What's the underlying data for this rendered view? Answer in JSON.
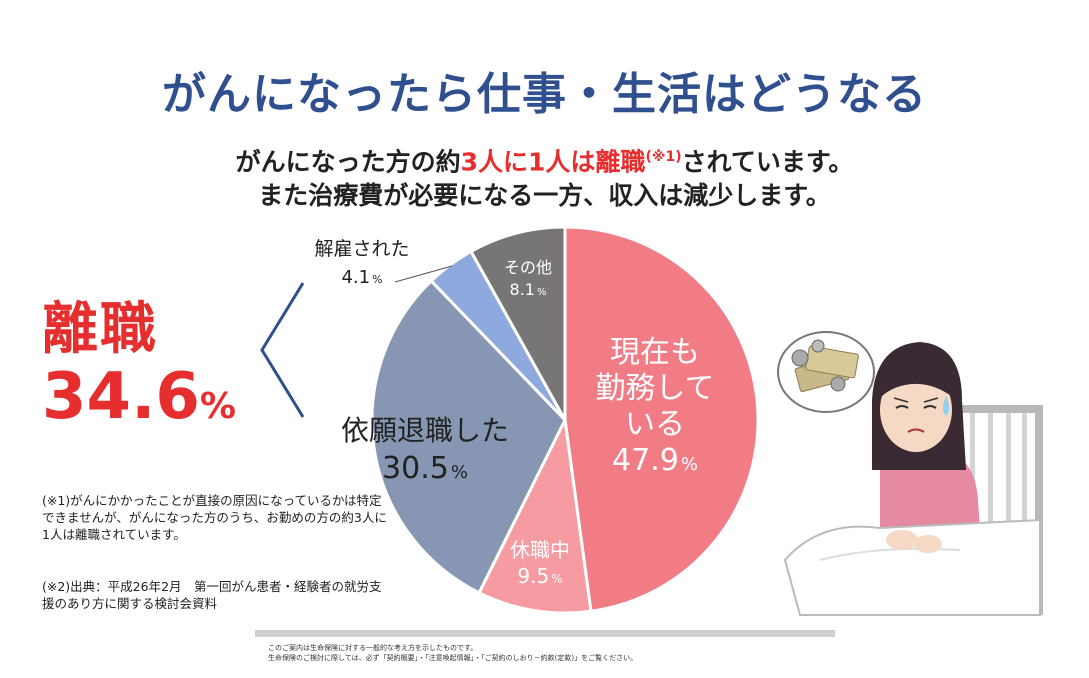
{
  "title": "がんになったら仕事・生活はどうなる",
  "subtitle": {
    "pre": "がんになった方の約",
    "highlight": "3人に1人は離職",
    "note": "(※1)",
    "post": "されています。",
    "line2": "また治療費が必要になる一方、収入は減少します。"
  },
  "rishoku": {
    "label": "離職",
    "value": "34.6",
    "unit": "%"
  },
  "footnotes": {
    "note1": "(※1)がんにかかったことが直接の原因になっているかは特定できませんが、がんになった方のうち、お勤めの方の約3人に1人は離職されています。",
    "note2": "(※2)出典：平成26年2月　第一回がん患者・経験者の就労支援のあり方に関する検討会資料"
  },
  "footer": {
    "line1": "このご案内は生命保険に対する一般的な考え方を示したものです。",
    "line2": "生命保険のご検討に際しては、必ず「契約概要」・「注意喚起情報」・「ご契約のしおり－約款(定款)」をご覧ください。"
  },
  "chart_data": {
    "type": "pie",
    "unit": "%",
    "slices": [
      {
        "label_lines": [
          "現在も",
          "勤務して",
          "いる"
        ],
        "value": 47.9,
        "value_label": "47.9",
        "color": "#f27c86"
      },
      {
        "label_lines": [
          "休職中"
        ],
        "value": 9.5,
        "value_label": "9.5",
        "color": "#f59ba1"
      },
      {
        "label_lines": [
          "依願退職した"
        ],
        "value": 30.5,
        "value_label": "30.5",
        "color": "#8797b3"
      },
      {
        "label_lines": [
          "解雇された"
        ],
        "value": 4.1,
        "value_label": "4.1",
        "color": "#8ea9dd"
      },
      {
        "label_lines": [
          "その他"
        ],
        "value": 8.1,
        "value_label": "8.1",
        "color": "#777575"
      }
    ]
  }
}
